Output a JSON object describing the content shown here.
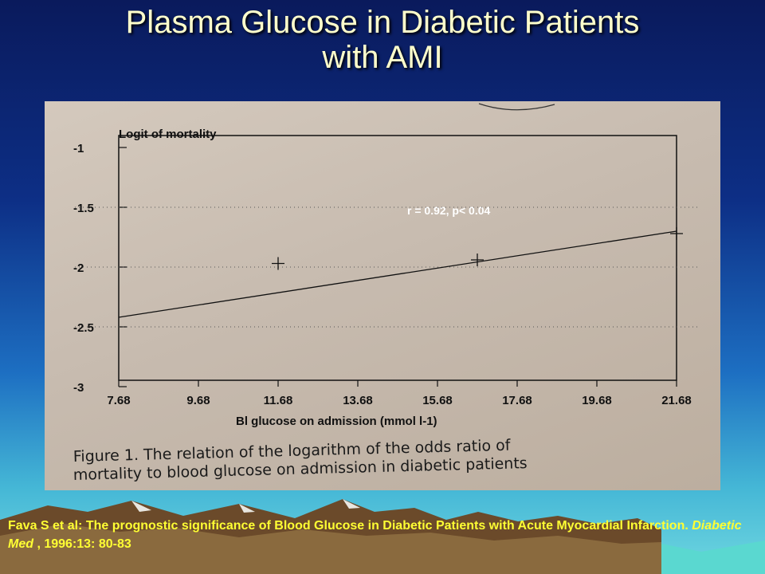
{
  "slide": {
    "title_line1": "Plasma Glucose in Diabetic Patients",
    "title_line2": "with AMI"
  },
  "chart_data": {
    "type": "scatter",
    "ylabel": "Logit of mortality",
    "xlabel": "Bl glucose on admission   (mmol l-1)",
    "x_ticks": [
      "7.68",
      "9.68",
      "11.68",
      "13.68",
      "15.68",
      "17.68",
      "19.68",
      "21.68"
    ],
    "y_ticks": [
      "-1",
      "-1.5",
      "-2",
      "-2.5",
      "-3"
    ],
    "xlim": [
      7.68,
      21.68
    ],
    "ylim": [
      -3,
      -1
    ],
    "grid": "horizontal dotted",
    "series": [
      {
        "points": [
          {
            "x": 11.68,
            "y": -1.97
          },
          {
            "x": 16.68,
            "y": -1.94
          },
          {
            "x": 21.68,
            "y": -1.72
          }
        ]
      }
    ],
    "fit_line": {
      "x": [
        7.68,
        21.68
      ],
      "y": [
        -2.42,
        -1.7
      ]
    },
    "annotation": "r = 0.92, p< 0.04",
    "caption_line1": "Figure 1.  The relation of the logarithm of the odds ratio of",
    "caption_line2": "mortality to blood glucose on admission in diabetic patients",
    "colors": {
      "ink": "#111111",
      "annotation": "#ffffff",
      "paper": "#cbbfb3"
    }
  },
  "citation": {
    "text_a": "Fava S et al: The prognostic significance of Blood Glucose in Diabetic Patients with Acute Myocardial Infarction. ",
    "journal": "Diabetic Med",
    "text_b": " , 1996:13: 80-83"
  }
}
